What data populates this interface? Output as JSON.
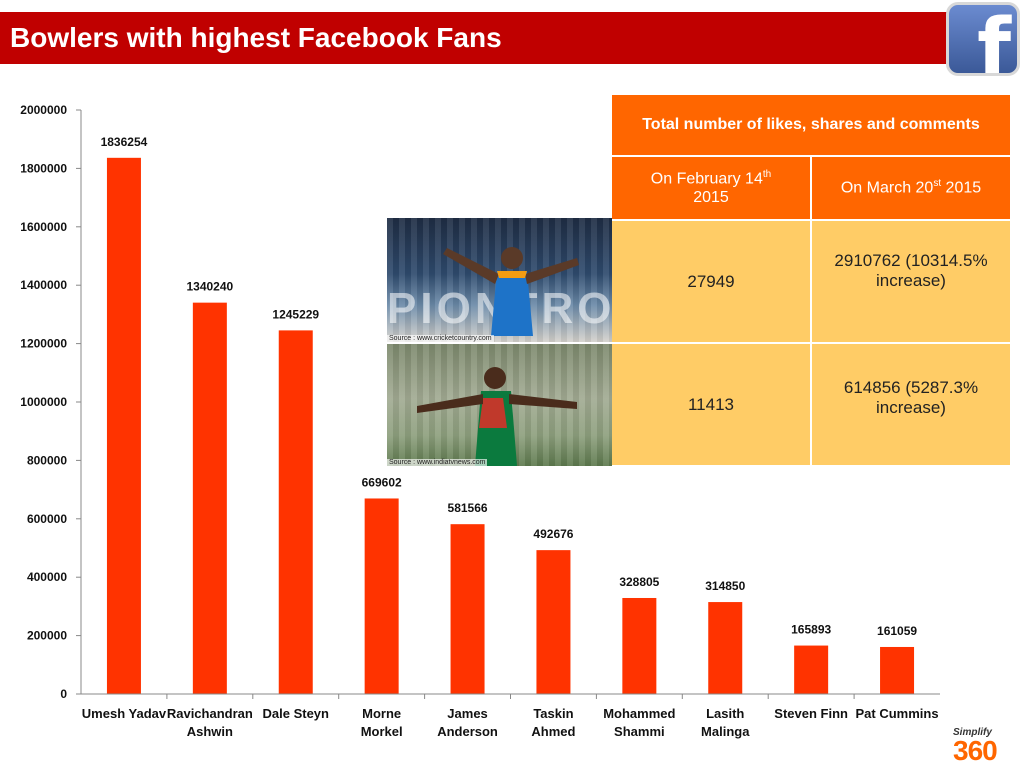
{
  "header": {
    "title": "Bowlers with highest Facebook Fans",
    "logo_icon": "facebook-icon",
    "brand_color": "#c00000"
  },
  "chart_data": {
    "type": "bar",
    "title": "",
    "xlabel": "",
    "ylabel": "",
    "ylim": [
      0,
      2000000
    ],
    "yticks": [
      "0",
      "200000",
      "400000",
      "600000",
      "800000",
      "1000000",
      "1200000",
      "1400000",
      "1600000",
      "1800000",
      "2000000"
    ],
    "categories": [
      [
        "Umesh Yadav"
      ],
      [
        "Ravichandran",
        "Ashwin"
      ],
      [
        "Dale Steyn"
      ],
      [
        "Morne",
        "Morkel"
      ],
      [
        "James",
        "Anderson"
      ],
      [
        "Taskin",
        "Ahmed"
      ],
      [
        "Mohammed",
        "Shammi"
      ],
      [
        "Lasith",
        "Malinga"
      ],
      [
        "Steven Finn"
      ],
      [
        "Pat Cummins"
      ]
    ],
    "values": [
      1836254,
      1340240,
      1245229,
      669602,
      581566,
      492676,
      328805,
      314850,
      165893,
      161059
    ],
    "bar_color": "#ff3300",
    "grid": false,
    "legend": "none"
  },
  "photos": [
    {
      "icon": "umesh-yadav-photo",
      "source": "Source : www.cricketcountry.com"
    },
    {
      "icon": "taskin-ahmed-photo",
      "source": "Source : www.indiatvnews.com"
    }
  ],
  "table": {
    "title": "Total number of likes, shares and comments",
    "col1": {
      "line1": "On February 14",
      "sup": "th",
      "line2": "2015"
    },
    "col2": {
      "pre": "On March 20",
      "sup": "st",
      "post": " 2015"
    },
    "rows": [
      {
        "feb": "27949",
        "mar_line1": "2910762 (10314.5%",
        "mar_line2": "increase)"
      },
      {
        "feb": "11413",
        "mar_line1": "614856 (5287.3%",
        "mar_line2": "increase)"
      }
    ],
    "header_color": "#ff6600",
    "body_color": "#ffcc66"
  },
  "footer": {
    "brand_small": "Simplify",
    "brand_large": "360",
    "brand_color": "#ff6600"
  }
}
